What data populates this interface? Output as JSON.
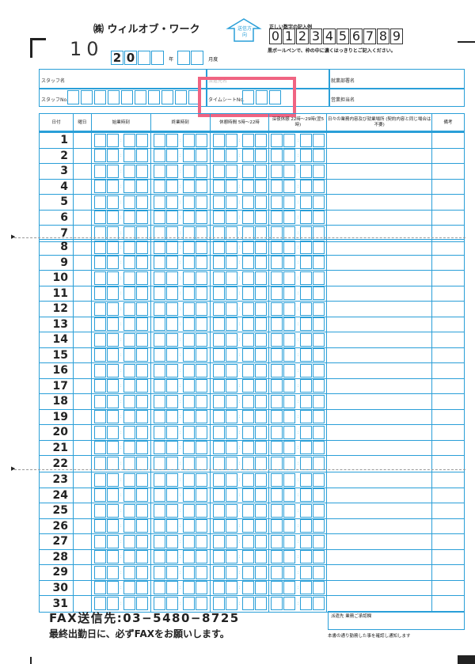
{
  "header": {
    "company": "㈱ ウィルオブ・ワーク",
    "form_number": "10",
    "year_prefix": [
      "2",
      "0",
      "",
      ""
    ],
    "year_label": "年",
    "month_label": "月度",
    "send_direction": "送信方向",
    "example_title": "正しい数字の記入例",
    "example_digits": [
      "0",
      "1",
      "2",
      "3",
      "4",
      "5",
      "6",
      "7",
      "8",
      "9"
    ],
    "instruction": "黒ボールペンで、枠の中に濃くはっきりとご記入ください。"
  },
  "info": {
    "staff_name": "スタッフ名",
    "client_name": "派遣先名",
    "department": "就業部署名",
    "staff_no": "スタッフNo.",
    "timesheet_no": "タイムシートNo.",
    "sales_rep": "営業担当名"
  },
  "table": {
    "columns": [
      "日付",
      "曜日",
      "始業時刻",
      "終業時刻",
      "休憩時間 5時〜22時",
      "深夜休憩 22時〜29時(翌5時)",
      "日々の業務内容及び就業場所 (契約内容と同じ場合は不要)",
      "備考"
    ],
    "days": [
      "1",
      "2",
      "3",
      "4",
      "5",
      "6",
      "7",
      "8",
      "9",
      "10",
      "11",
      "12",
      "13",
      "14",
      "15",
      "16",
      "17",
      "18",
      "19",
      "20",
      "21",
      "22",
      "23",
      "24",
      "25",
      "26",
      "27",
      "28",
      "29",
      "30",
      "31"
    ]
  },
  "footer": {
    "fax": "FAX送信先:03−5480−8725",
    "fax_note": "最終出勤日に、必ずFAXをお願いします。",
    "approval": "派遣先 業務ご承認欄",
    "approval_note": "本書の通り勤務した事を確認し通知します"
  },
  "colors": {
    "line": "#2a9fd8",
    "highlight": "#f06482"
  }
}
